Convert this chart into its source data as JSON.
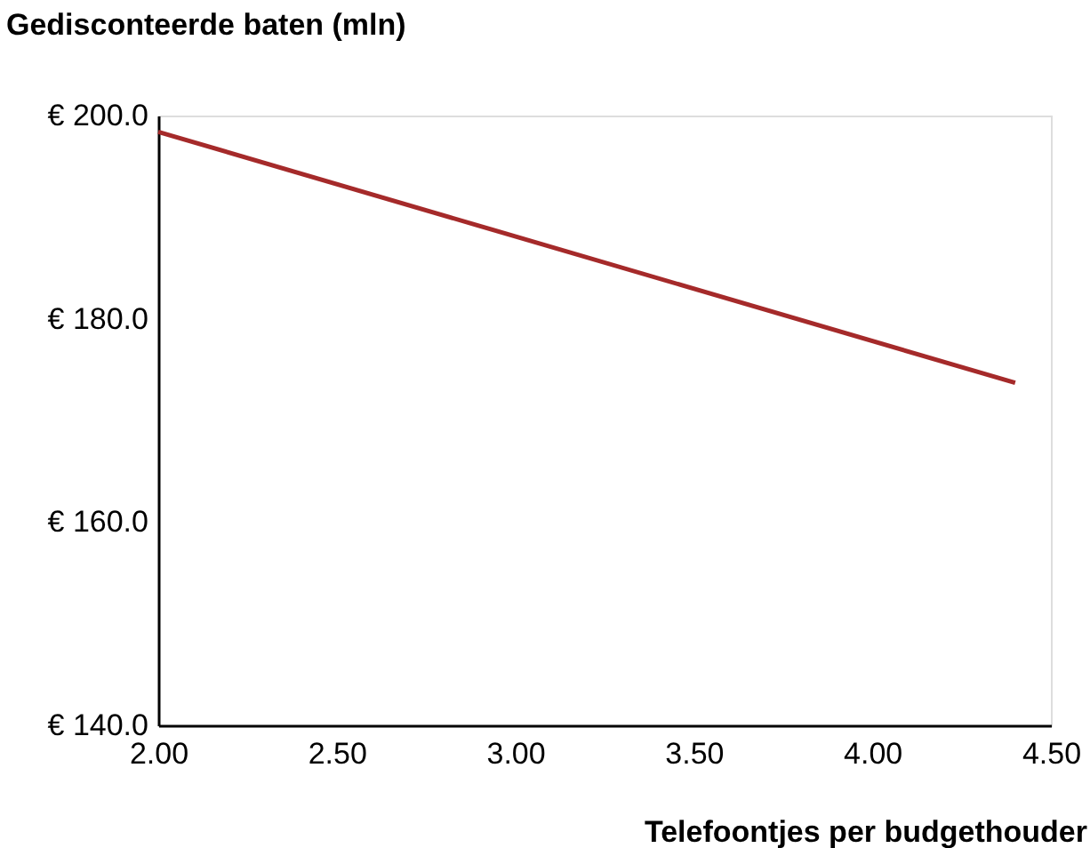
{
  "chart_data": {
    "type": "line",
    "xlabel": "Telefoontjes per budgethouder",
    "ylabel": "Gedisconteerde baten (mln)",
    "x": [
      2.0,
      4.4
    ],
    "series": [
      {
        "color": "#a52a2a",
        "values": [
          198.4,
          173.7
        ]
      }
    ],
    "xlim": [
      2.0,
      4.5
    ],
    "xticks": [
      {
        "value": 2.0,
        "label": "2.00"
      },
      {
        "value": 2.5,
        "label": "2.50"
      },
      {
        "value": 3.0,
        "label": "3.00"
      },
      {
        "value": 3.5,
        "label": "3.50"
      },
      {
        "value": 4.0,
        "label": "4.00"
      },
      {
        "value": 4.5,
        "label": "4.50"
      }
    ],
    "ylim": [
      140,
      200
    ],
    "yticks": [
      {
        "value": 140,
        "label": "€ 140.0"
      },
      {
        "value": 160,
        "label": "€ 160.0"
      },
      {
        "value": 180,
        "label": "€ 180.0"
      },
      {
        "value": 200,
        "label": "€ 200.0"
      }
    ],
    "grid": false,
    "marker": "none",
    "line_style": "solid"
  }
}
